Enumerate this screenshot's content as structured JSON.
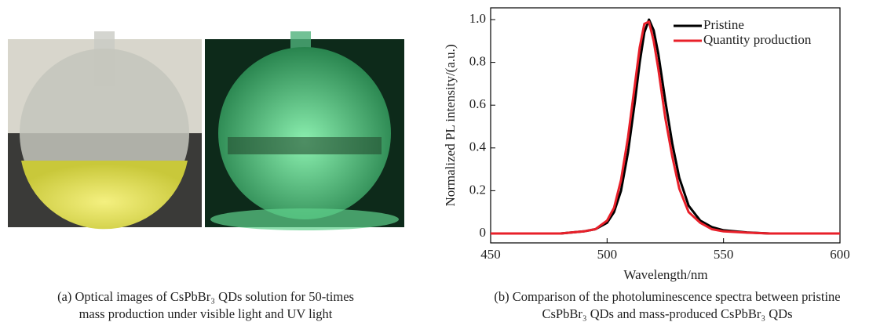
{
  "figure": {
    "panel_a": {
      "caption": [
        "(a) Optical images of CsPbBr₃ QDs solution for 50-times",
        "mass production under visible light and UV light"
      ]
    },
    "panel_b": {
      "caption": [
        "(b) Comparison of the photoluminescence spectra between pristine",
        "CsPbBr₃ QDs and mass-produced CsPbBr₃ QDs"
      ]
    }
  },
  "chart_data": {
    "type": "line",
    "x_label": "Wavelength/nm",
    "y_label": "Normalized PL intensity/(a.u.)",
    "x": [
      450,
      480,
      490,
      495,
      500,
      503,
      506,
      509,
      512,
      514,
      516,
      518,
      520,
      522,
      525,
      528,
      531,
      535,
      540,
      545,
      550,
      560,
      570,
      600
    ],
    "series": [
      {
        "name": "Pristine",
        "color": "#000000",
        "values": [
          0,
          0,
          0.01,
          0.02,
          0.05,
          0.1,
          0.2,
          0.38,
          0.62,
          0.8,
          0.94,
          1.0,
          0.95,
          0.84,
          0.62,
          0.42,
          0.26,
          0.13,
          0.06,
          0.03,
          0.015,
          0.005,
          0,
          0
        ]
      },
      {
        "name": "Quantity production",
        "color": "#e8202a",
        "values": [
          0,
          0,
          0.01,
          0.02,
          0.06,
          0.12,
          0.25,
          0.45,
          0.7,
          0.87,
          0.98,
          0.99,
          0.9,
          0.77,
          0.54,
          0.36,
          0.21,
          0.1,
          0.05,
          0.02,
          0.01,
          0.004,
          0,
          0
        ]
      }
    ],
    "xlim": [
      450,
      600
    ],
    "xticks": [
      450,
      500,
      550,
      600
    ],
    "ylim": [
      -0.044,
      1.055
    ],
    "yticks": [
      0,
      0.2,
      0.4,
      0.6,
      0.8,
      {
        "value": 1,
        "label": "1.0"
      }
    ],
    "legend": "upper-right"
  }
}
